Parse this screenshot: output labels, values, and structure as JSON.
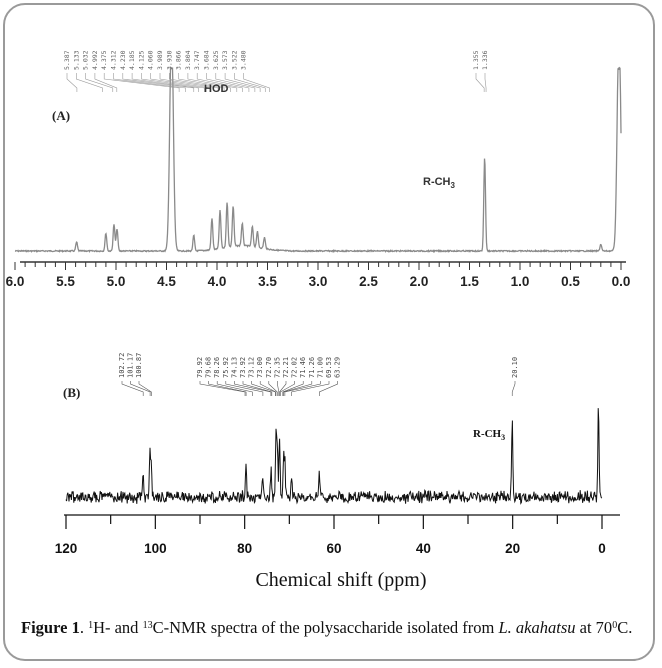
{
  "figure": {
    "caption": {
      "label": "Figure 1",
      "sep": ". ",
      "sup1": "1",
      "part1": "H- and ",
      "sup2": "13",
      "part2": "C-NMR spectra of the polysaccharide isolated from ",
      "species": "L. akahatsu",
      "part3": " at 70",
      "sup3": "0",
      "part4": "C."
    }
  },
  "chart_data": [
    {
      "type": "line",
      "panel_label": "(A)",
      "xlabel": "",
      "xlim": [
        6.0,
        0.0
      ],
      "x_reversed": true,
      "x_ticks": [
        "6.0",
        "5.5",
        "5.0",
        "4.5",
        "4.0",
        "3.5",
        "3.0",
        "2.5",
        "2.0",
        "1.5",
        "1.0",
        "0.5",
        "0.0"
      ],
      "annotations": [
        {
          "text": "HOD",
          "x": 4.33
        },
        {
          "text": "R-CH",
          "sub": "3",
          "x": 1.55
        }
      ],
      "peak_labels_left": [
        "5.387",
        "5.133",
        "5.032",
        "4.992",
        "4.375",
        "4.312",
        "4.230",
        "4.185",
        "4.125",
        "4.060",
        "3.989",
        "3.930",
        "3.866",
        "3.804",
        "3.747",
        "3.684",
        "3.625",
        "3.573",
        "3.522",
        "3.480"
      ],
      "peak_labels_right": [
        "1.355",
        "1.336"
      ],
      "peaks": [
        {
          "x": 5.39,
          "h": 0.04
        },
        {
          "x": 5.1,
          "h": 0.08
        },
        {
          "x": 5.02,
          "h": 0.12
        },
        {
          "x": 4.99,
          "h": 0.1
        },
        {
          "x": 4.45,
          "h": 1.0
        },
        {
          "x": 4.23,
          "h": 0.07
        },
        {
          "x": 4.05,
          "h": 0.14
        },
        {
          "x": 3.97,
          "h": 0.17
        },
        {
          "x": 3.9,
          "h": 0.2
        },
        {
          "x": 3.84,
          "h": 0.18
        },
        {
          "x": 3.75,
          "h": 0.1
        },
        {
          "x": 3.65,
          "h": 0.09
        },
        {
          "x": 3.6,
          "h": 0.07
        },
        {
          "x": 3.53,
          "h": 0.05
        },
        {
          "x": 1.35,
          "h": 0.42
        },
        {
          "x": 0.2,
          "h": 0.03
        },
        {
          "x": 0.02,
          "h": 1.0
        }
      ]
    },
    {
      "type": "line",
      "panel_label": "(B)",
      "xlabel": "Chemical shift (ppm)",
      "xlim": [
        120,
        0
      ],
      "x_reversed": true,
      "x_ticks": [
        "120",
        "100",
        "80",
        "60",
        "40",
        "20",
        "0"
      ],
      "annotations": [
        {
          "text": "R-CH",
          "sub": "3",
          "x": 33
        }
      ],
      "peak_labels_left": [
        "102.72",
        "101.17",
        "100.87"
      ],
      "peak_labels_mid": [
        "79.92",
        "79.68",
        "78.26",
        "75.92",
        "74.13",
        "73.92",
        "73.12",
        "73.00",
        "72.70",
        "72.35",
        "72.21",
        "72.02",
        "71.46",
        "71.26",
        "71.00",
        "69.53",
        "63.29"
      ],
      "peak_labels_right": [
        "20.10"
      ],
      "peaks": [
        {
          "x": 102.7,
          "h": 0.25
        },
        {
          "x": 101.2,
          "h": 0.45
        },
        {
          "x": 100.9,
          "h": 0.3
        },
        {
          "x": 79.7,
          "h": 0.3
        },
        {
          "x": 76.0,
          "h": 0.18
        },
        {
          "x": 74.1,
          "h": 0.3
        },
        {
          "x": 73.0,
          "h": 0.62
        },
        {
          "x": 72.7,
          "h": 0.55
        },
        {
          "x": 72.2,
          "h": 0.62
        },
        {
          "x": 71.3,
          "h": 0.42
        },
        {
          "x": 71.0,
          "h": 0.35
        },
        {
          "x": 69.5,
          "h": 0.2
        },
        {
          "x": 63.3,
          "h": 0.27
        },
        {
          "x": 20.1,
          "h": 0.82
        },
        {
          "x": 0.8,
          "h": 0.95
        }
      ]
    }
  ]
}
